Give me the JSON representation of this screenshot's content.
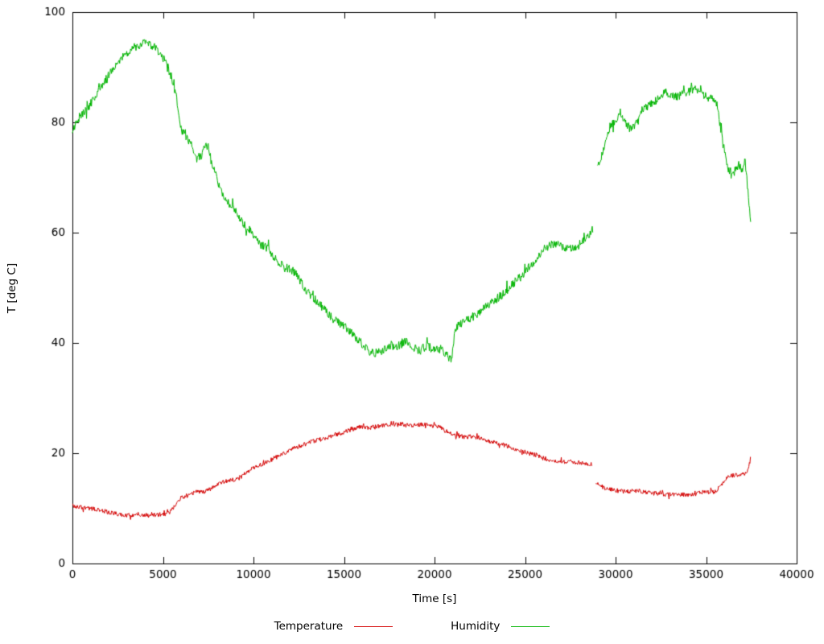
{
  "chart": {
    "xlabel": "Time [s]",
    "ylabel": "T [deg C]",
    "background": "#ffffff",
    "border_color": "#000000",
    "text_color": "#000000"
  },
  "chart_data": {
    "type": "line",
    "title": "",
    "xlabel": "Time [s]",
    "ylabel": "T [deg C]",
    "xlim": [
      0,
      40000
    ],
    "ylim": [
      0,
      100
    ],
    "x_ticks": [
      0,
      5000,
      10000,
      15000,
      20000,
      25000,
      30000,
      35000,
      40000
    ],
    "y_ticks": [
      0,
      20,
      40,
      60,
      80,
      100
    ],
    "grid": false,
    "legend_position": "bottom-center",
    "series": [
      {
        "name": "Temperature",
        "color": "#d40000",
        "noise": 0.4,
        "segments": [
          [
            [
              0,
              10.5
            ],
            [
              400,
              10.2
            ],
            [
              800,
              10.1
            ],
            [
              1200,
              9.9
            ],
            [
              1600,
              9.6
            ],
            [
              2000,
              9.3
            ],
            [
              2400,
              9.0
            ],
            [
              2800,
              8.8
            ],
            [
              3400,
              8.8
            ],
            [
              4000,
              8.8
            ],
            [
              4600,
              8.8
            ],
            [
              5000,
              8.9
            ],
            [
              5400,
              9.3
            ],
            [
              5700,
              10.8
            ],
            [
              6000,
              12.0
            ],
            [
              6400,
              12.4
            ],
            [
              6800,
              12.9
            ],
            [
              7200,
              13.1
            ],
            [
              7600,
              13.4
            ],
            [
              8000,
              14.2
            ],
            [
              8400,
              14.9
            ],
            [
              8800,
              15.1
            ],
            [
              9200,
              15.5
            ],
            [
              9600,
              16.4
            ],
            [
              10000,
              17.3
            ],
            [
              10400,
              17.9
            ],
            [
              10800,
              18.5
            ],
            [
              11200,
              19.2
            ],
            [
              11600,
              19.8
            ],
            [
              12000,
              20.5
            ],
            [
              12400,
              21.1
            ],
            [
              12800,
              21.6
            ],
            [
              13200,
              22.1
            ],
            [
              13600,
              22.4
            ],
            [
              14000,
              22.8
            ],
            [
              14400,
              23.1
            ],
            [
              14800,
              23.6
            ],
            [
              15200,
              24.1
            ],
            [
              15600,
              24.5
            ],
            [
              16000,
              24.8
            ],
            [
              16400,
              24.6
            ],
            [
              16800,
              24.9
            ],
            [
              17200,
              25.0
            ],
            [
              17600,
              25.1
            ],
            [
              18000,
              25.2
            ],
            [
              18400,
              25.3
            ],
            [
              18800,
              25.0
            ],
            [
              19200,
              25.2
            ],
            [
              19600,
              25.1
            ],
            [
              20000,
              25.0
            ],
            [
              20400,
              24.6
            ],
            [
              20800,
              23.8
            ],
            [
              21200,
              23.2
            ],
            [
              21600,
              23.0
            ],
            [
              22000,
              23.0
            ],
            [
              22400,
              22.9
            ],
            [
              22800,
              22.4
            ],
            [
              23200,
              22.0
            ],
            [
              23600,
              21.7
            ],
            [
              24000,
              21.3
            ],
            [
              24400,
              20.9
            ],
            [
              24800,
              20.4
            ],
            [
              25200,
              20.0
            ],
            [
              25600,
              19.7
            ],
            [
              26000,
              19.1
            ],
            [
              26400,
              18.8
            ],
            [
              26800,
              18.6
            ],
            [
              27200,
              18.5
            ],
            [
              27600,
              18.5
            ],
            [
              28000,
              18.3
            ],
            [
              28400,
              18.1
            ],
            [
              28700,
              17.9
            ]
          ],
          [
            [
              28900,
              14.6
            ],
            [
              29200,
              14.0
            ],
            [
              29600,
              13.5
            ],
            [
              30000,
              13.2
            ],
            [
              30400,
              13.1
            ],
            [
              30800,
              13.1
            ],
            [
              31200,
              13.2
            ],
            [
              31600,
              13.0
            ],
            [
              32000,
              12.8
            ],
            [
              32400,
              12.6
            ],
            [
              32800,
              12.5
            ],
            [
              33200,
              12.5
            ],
            [
              33600,
              12.5
            ],
            [
              34000,
              12.5
            ],
            [
              34400,
              12.6
            ],
            [
              34800,
              12.9
            ],
            [
              35200,
              13.0
            ],
            [
              35500,
              13.0
            ],
            [
              35800,
              14.2
            ],
            [
              36100,
              15.4
            ],
            [
              36400,
              15.9
            ],
            [
              36700,
              16.1
            ],
            [
              37000,
              16.2
            ],
            [
              37200,
              16.4
            ],
            [
              37350,
              17.5
            ],
            [
              37450,
              19.0
            ]
          ]
        ]
      },
      {
        "name": "Humidity",
        "color": "#00b400",
        "noise": 0.8,
        "segments": [
          [
            [
              0,
              78.5
            ],
            [
              200,
              80.0
            ],
            [
              500,
              81.5
            ],
            [
              800,
              82.2
            ],
            [
              1100,
              84.0
            ],
            [
              1400,
              85.5
            ],
            [
              1700,
              87.0
            ],
            [
              2000,
              88.5
            ],
            [
              2300,
              90.0
            ],
            [
              2600,
              91.3
            ],
            [
              2900,
              92.3
            ],
            [
              3200,
              93.0
            ],
            [
              3500,
              93.8
            ],
            [
              3800,
              94.2
            ],
            [
              4100,
              94.3
            ],
            [
              4400,
              94.0
            ],
            [
              4700,
              93.2
            ],
            [
              5000,
              91.8
            ],
            [
              5300,
              89.8
            ],
            [
              5600,
              86.8
            ],
            [
              5800,
              83.5
            ],
            [
              6000,
              78.8
            ],
            [
              6300,
              77.2
            ],
            [
              6600,
              75.6
            ],
            [
              6900,
              73.6
            ],
            [
              7100,
              74.0
            ],
            [
              7300,
              75.8
            ],
            [
              7500,
              75.5
            ],
            [
              7700,
              72.5
            ],
            [
              8000,
              69.5
            ],
            [
              8300,
              66.8
            ],
            [
              8600,
              65.4
            ],
            [
              8900,
              64.3
            ],
            [
              9200,
              62.8
            ],
            [
              9500,
              61.4
            ],
            [
              9800,
              60.6
            ],
            [
              10100,
              59.3
            ],
            [
              10400,
              57.9
            ],
            [
              10800,
              57.2
            ],
            [
              11200,
              55.3
            ],
            [
              11600,
              54.0
            ],
            [
              12000,
              53.4
            ],
            [
              12400,
              52.3
            ],
            [
              12800,
              50.1
            ],
            [
              13200,
              48.4
            ],
            [
              13600,
              47.2
            ],
            [
              14000,
              45.8
            ],
            [
              14400,
              44.4
            ],
            [
              14800,
              43.4
            ],
            [
              15200,
              42.6
            ],
            [
              15600,
              41.0
            ],
            [
              16000,
              39.8
            ],
            [
              16400,
              38.4
            ],
            [
              16800,
              38.2
            ],
            [
              17200,
              38.8
            ],
            [
              17600,
              39.6
            ],
            [
              18000,
              39.4
            ],
            [
              18400,
              40.4
            ],
            [
              18800,
              39.2
            ],
            [
              19200,
              38.6
            ],
            [
              19600,
              39.6
            ],
            [
              20000,
              38.5
            ],
            [
              20400,
              39.0
            ],
            [
              20700,
              37.6
            ],
            [
              20950,
              37.0
            ],
            [
              21150,
              42.6
            ],
            [
              21500,
              43.6
            ],
            [
              21900,
              44.2
            ],
            [
              22300,
              45.2
            ],
            [
              22700,
              46.2
            ],
            [
              23100,
              47.2
            ],
            [
              23500,
              48.2
            ],
            [
              23900,
              49.2
            ],
            [
              24300,
              50.6
            ],
            [
              24700,
              51.8
            ],
            [
              25100,
              53.2
            ],
            [
              25500,
              54.8
            ],
            [
              25900,
              56.6
            ],
            [
              26300,
              57.6
            ],
            [
              26700,
              58.1
            ],
            [
              27100,
              57.4
            ],
            [
              27500,
              57.0
            ],
            [
              27900,
              57.6
            ],
            [
              28300,
              58.6
            ],
            [
              28600,
              59.8
            ],
            [
              28750,
              60.6
            ]
          ],
          [
            [
              29000,
              71.5
            ],
            [
              29200,
              73.8
            ],
            [
              29450,
              76.2
            ],
            [
              29700,
              79.0
            ],
            [
              30000,
              80.6
            ],
            [
              30300,
              81.0
            ],
            [
              30600,
              79.6
            ],
            [
              30900,
              78.6
            ],
            [
              31200,
              80.2
            ],
            [
              31500,
              82.4
            ],
            [
              31800,
              83.0
            ],
            [
              32100,
              83.4
            ],
            [
              32400,
              84.6
            ],
            [
              32700,
              85.6
            ],
            [
              33000,
              85.0
            ],
            [
              33300,
              84.6
            ],
            [
              33700,
              85.0
            ],
            [
              34100,
              85.6
            ],
            [
              34400,
              86.0
            ],
            [
              34700,
              85.4
            ],
            [
              35000,
              84.6
            ],
            [
              35300,
              84.6
            ],
            [
              35600,
              83.4
            ],
            [
              35800,
              79.0
            ],
            [
              36000,
              75.4
            ],
            [
              36200,
              71.6
            ],
            [
              36400,
              70.2
            ],
            [
              36600,
              71.2
            ],
            [
              36800,
              72.6
            ],
            [
              37000,
              70.8
            ],
            [
              37150,
              73.0
            ],
            [
              37300,
              68.0
            ],
            [
              37400,
              64.5
            ],
            [
              37470,
              62.0
            ]
          ]
        ]
      }
    ]
  }
}
